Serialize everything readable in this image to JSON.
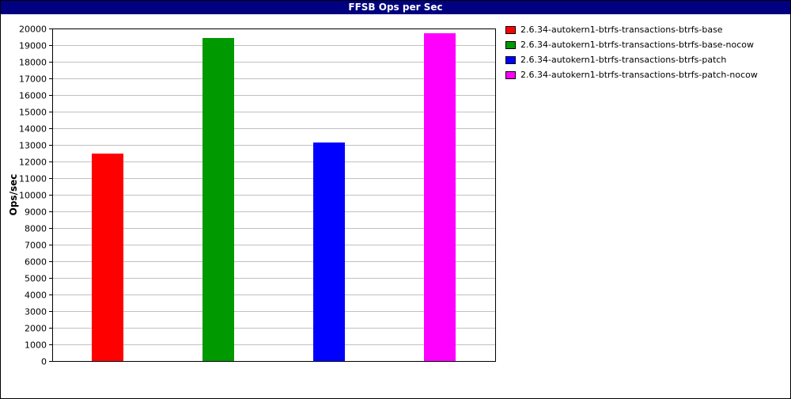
{
  "window": {
    "title": "FFSB Ops per Sec"
  },
  "chart_data": {
    "type": "bar",
    "title": "FFSB Ops per Sec",
    "xlabel": "",
    "ylabel": "Ops/sec",
    "ylim": [
      0,
      20000
    ],
    "ytick_step": 1000,
    "grid": true,
    "legend_position": "right",
    "categories": [
      ""
    ],
    "series": [
      {
        "name": "2.6.34-autokern1-btrfs-transactions-btrfs-base",
        "color": "#ff0000",
        "values": [
          12500
        ]
      },
      {
        "name": "2.6.34-autokern1-btrfs-transactions-btrfs-base-nocow",
        "color": "#009900",
        "values": [
          19450
        ]
      },
      {
        "name": "2.6.34-autokern1-btrfs-transactions-btrfs-patch",
        "color": "#0000ff",
        "values": [
          13150
        ]
      },
      {
        "name": "2.6.34-autokern1-btrfs-transactions-btrfs-patch-nocow",
        "color": "#ff00ff",
        "values": [
          19700
        ]
      }
    ]
  }
}
